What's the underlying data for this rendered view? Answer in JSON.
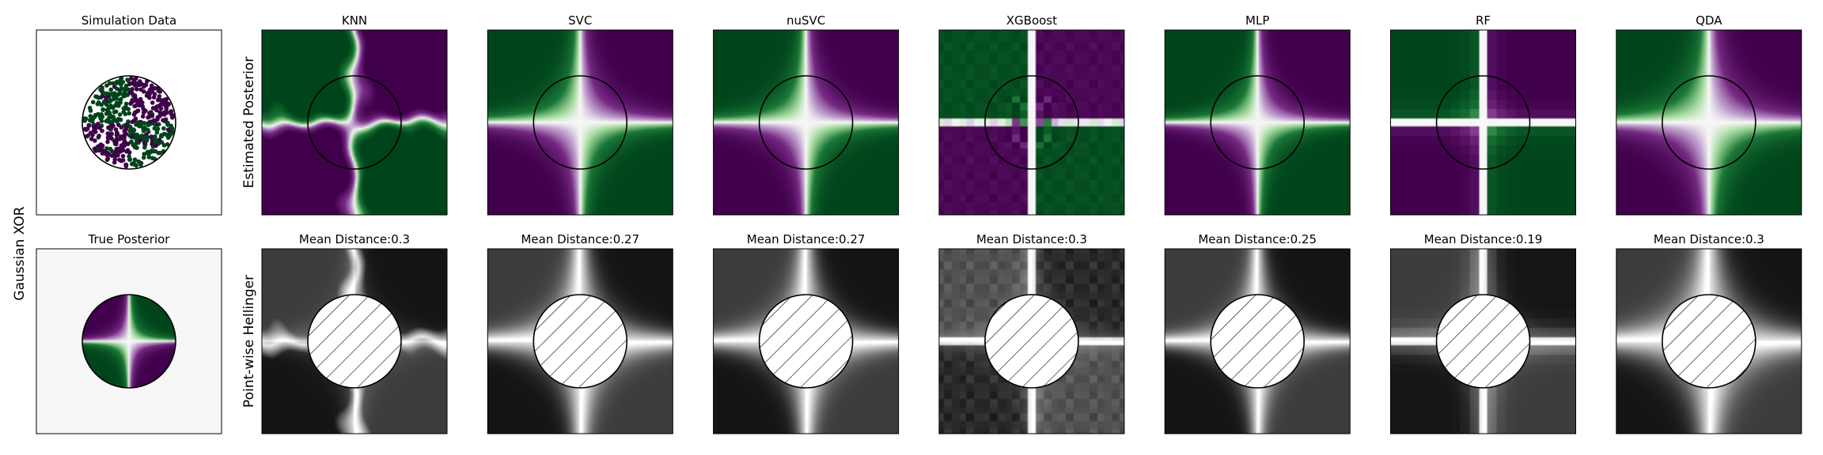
{
  "figure": {
    "row_label": "Gaussian XOR",
    "row_ylabels": [
      "Estimated Posterior",
      "Point-wise Hellinger"
    ]
  },
  "colors": {
    "green": "#00441b",
    "purple": "#40004b",
    "mid": "#f7f7f7",
    "circle": "#000000"
  },
  "chart_data": {
    "type": "heatmap",
    "simulation": {
      "title": "Simulation Data",
      "n_points": 500,
      "classes": [
        "green",
        "purple"
      ],
      "pattern": "XOR quadrants within unit circle"
    },
    "true_posterior": {
      "title": "True Posterior",
      "pattern": "XOR quadrants within unit circle"
    },
    "models": [
      {
        "name": "KNN",
        "hellinger_title": "Mean Distance:0.3",
        "mean_distance": 0.3
      },
      {
        "name": "SVC",
        "hellinger_title": "Mean Distance:0.27",
        "mean_distance": 0.27
      },
      {
        "name": "nuSVC",
        "hellinger_title": "Mean Distance:0.27",
        "mean_distance": 0.27
      },
      {
        "name": "XGBoost",
        "hellinger_title": "Mean Distance:0.3",
        "mean_distance": 0.3
      },
      {
        "name": "MLP",
        "hellinger_title": "Mean Distance:0.25",
        "mean_distance": 0.25
      },
      {
        "name": "RF",
        "hellinger_title": "Mean Distance:0.19",
        "mean_distance": 0.19
      },
      {
        "name": "QDA",
        "hellinger_title": "Mean Distance:0.3",
        "mean_distance": 0.3
      }
    ],
    "grid": false,
    "ticks": false
  }
}
